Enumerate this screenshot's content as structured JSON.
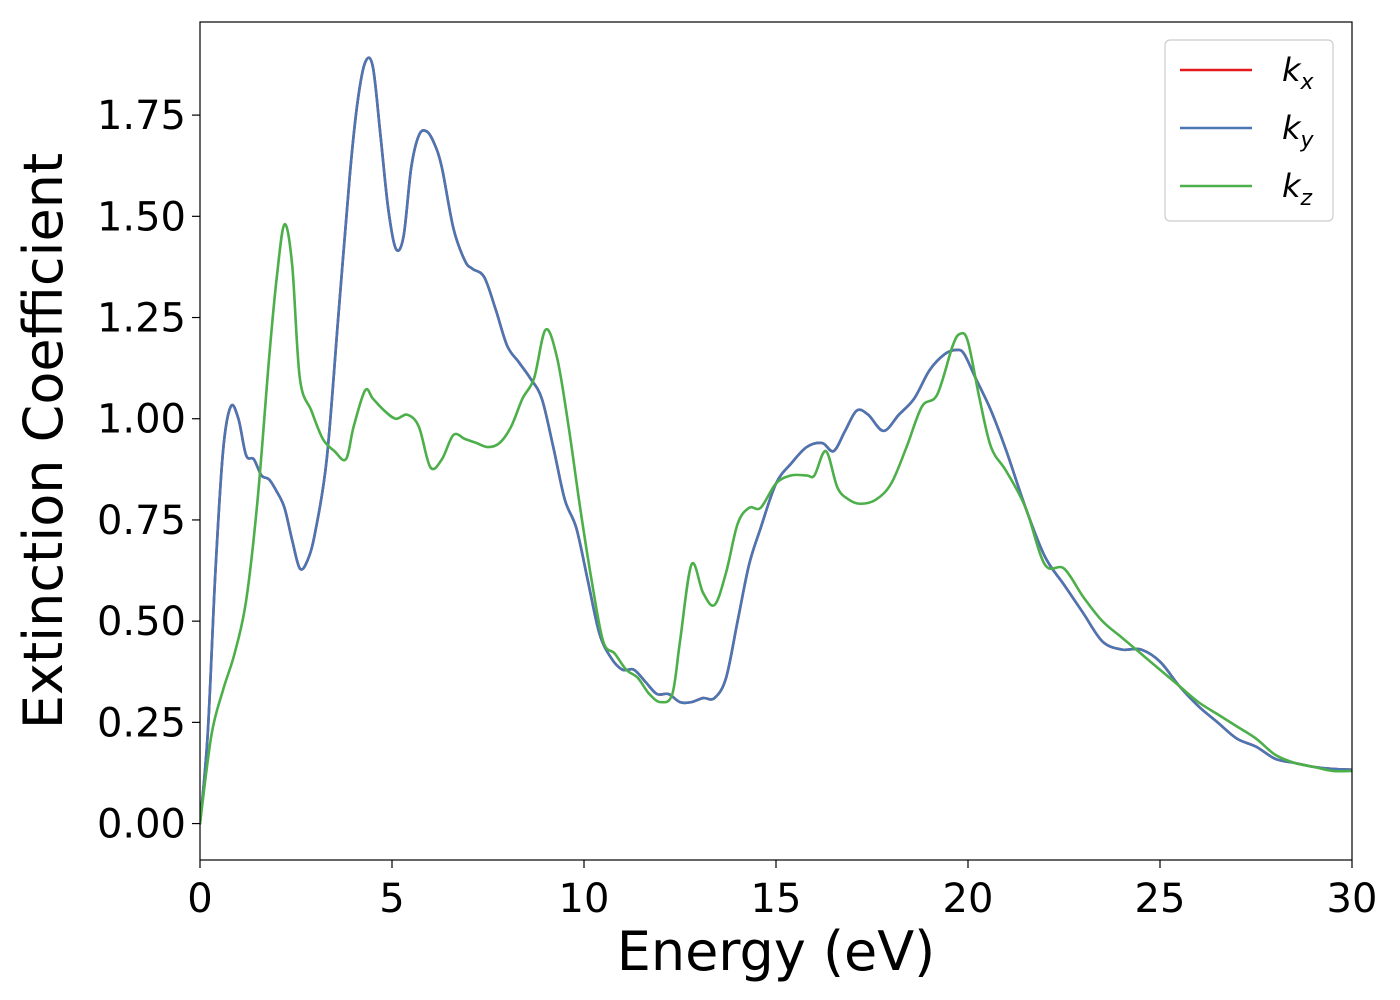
{
  "chart_data": {
    "type": "line",
    "xlabel": "Energy (eV)",
    "ylabel": "Extinction Coefficient",
    "xlim": [
      0,
      30
    ],
    "ylim": [
      -0.09,
      1.98
    ],
    "xticks": [
      0,
      5,
      10,
      15,
      20,
      25,
      30
    ],
    "xtick_labels": [
      "0",
      "5",
      "10",
      "15",
      "20",
      "25",
      "30"
    ],
    "yticks": [
      0.0,
      0.25,
      0.5,
      0.75,
      1.0,
      1.25,
      1.5,
      1.75
    ],
    "ytick_labels": [
      "0.00",
      "0.25",
      "0.50",
      "0.75",
      "1.00",
      "1.25",
      "1.50",
      "1.75"
    ],
    "grid": false,
    "legend_position": "top-right",
    "series": [
      {
        "name": "k_x",
        "base": "k",
        "sub": "x",
        "color": "#e41a1c",
        "x": [
          0,
          0.2,
          0.4,
          0.6,
          0.8,
          1.0,
          1.2,
          1.4,
          1.6,
          1.8,
          2.0,
          2.2,
          2.4,
          2.6,
          2.8,
          3.0,
          3.3,
          3.6,
          3.9,
          4.1,
          4.3,
          4.5,
          4.7,
          4.9,
          5.1,
          5.3,
          5.5,
          5.7,
          5.9,
          6.1,
          6.3,
          6.6,
          6.9,
          7.1,
          7.4,
          7.7,
          8.0,
          8.3,
          8.6,
          8.9,
          9.2,
          9.5,
          9.8,
          10.1,
          10.4,
          10.7,
          11.0,
          11.3,
          11.6,
          11.9,
          12.2,
          12.5,
          12.8,
          13.1,
          13.4,
          13.7,
          14.0,
          14.3,
          14.6,
          15.0,
          15.4,
          15.8,
          16.2,
          16.5,
          16.8,
          17.1,
          17.4,
          17.8,
          18.2,
          18.6,
          19.0,
          19.4,
          19.7,
          19.9,
          20.2,
          20.6,
          21.0,
          21.5,
          22.0,
          22.5,
          23.0,
          23.5,
          24.0,
          24.5,
          25.0,
          25.5,
          26.0,
          26.5,
          27.0,
          27.5,
          28.0,
          28.5,
          29.0,
          29.5,
          30.0
        ],
        "y": [
          0.0,
          0.22,
          0.62,
          0.92,
          1.03,
          1.0,
          0.91,
          0.9,
          0.86,
          0.85,
          0.82,
          0.78,
          0.7,
          0.63,
          0.65,
          0.72,
          0.9,
          1.25,
          1.6,
          1.78,
          1.88,
          1.87,
          1.7,
          1.52,
          1.42,
          1.45,
          1.62,
          1.7,
          1.71,
          1.68,
          1.62,
          1.47,
          1.39,
          1.37,
          1.35,
          1.27,
          1.18,
          1.14,
          1.1,
          1.05,
          0.93,
          0.8,
          0.73,
          0.6,
          0.47,
          0.41,
          0.38,
          0.38,
          0.35,
          0.32,
          0.32,
          0.3,
          0.3,
          0.31,
          0.31,
          0.36,
          0.5,
          0.64,
          0.73,
          0.84,
          0.89,
          0.93,
          0.94,
          0.92,
          0.97,
          1.02,
          1.01,
          0.97,
          1.01,
          1.05,
          1.12,
          1.16,
          1.17,
          1.16,
          1.1,
          1.02,
          0.92,
          0.78,
          0.66,
          0.59,
          0.52,
          0.45,
          0.43,
          0.43,
          0.4,
          0.34,
          0.29,
          0.25,
          0.21,
          0.19,
          0.16,
          0.15,
          0.14,
          0.135,
          0.133
        ]
      },
      {
        "name": "k_y",
        "base": "k",
        "sub": "y",
        "color": "#4a76b4",
        "x": [
          0,
          0.2,
          0.4,
          0.6,
          0.8,
          1.0,
          1.2,
          1.4,
          1.6,
          1.8,
          2.0,
          2.2,
          2.4,
          2.6,
          2.8,
          3.0,
          3.3,
          3.6,
          3.9,
          4.1,
          4.3,
          4.5,
          4.7,
          4.9,
          5.1,
          5.3,
          5.5,
          5.7,
          5.9,
          6.1,
          6.3,
          6.6,
          6.9,
          7.1,
          7.4,
          7.7,
          8.0,
          8.3,
          8.6,
          8.9,
          9.2,
          9.5,
          9.8,
          10.1,
          10.4,
          10.7,
          11.0,
          11.3,
          11.6,
          11.9,
          12.2,
          12.5,
          12.8,
          13.1,
          13.4,
          13.7,
          14.0,
          14.3,
          14.6,
          15.0,
          15.4,
          15.8,
          16.2,
          16.5,
          16.8,
          17.1,
          17.4,
          17.8,
          18.2,
          18.6,
          19.0,
          19.4,
          19.7,
          19.9,
          20.2,
          20.6,
          21.0,
          21.5,
          22.0,
          22.5,
          23.0,
          23.5,
          24.0,
          24.5,
          25.0,
          25.5,
          26.0,
          26.5,
          27.0,
          27.5,
          28.0,
          28.5,
          29.0,
          29.5,
          30.0
        ],
        "y": [
          0.0,
          0.22,
          0.62,
          0.92,
          1.03,
          1.0,
          0.91,
          0.9,
          0.86,
          0.85,
          0.82,
          0.78,
          0.7,
          0.63,
          0.65,
          0.72,
          0.9,
          1.25,
          1.6,
          1.78,
          1.88,
          1.87,
          1.7,
          1.52,
          1.42,
          1.45,
          1.62,
          1.7,
          1.71,
          1.68,
          1.62,
          1.47,
          1.39,
          1.37,
          1.35,
          1.27,
          1.18,
          1.14,
          1.1,
          1.05,
          0.93,
          0.8,
          0.73,
          0.6,
          0.47,
          0.41,
          0.38,
          0.38,
          0.35,
          0.32,
          0.32,
          0.3,
          0.3,
          0.31,
          0.31,
          0.36,
          0.5,
          0.64,
          0.73,
          0.84,
          0.89,
          0.93,
          0.94,
          0.92,
          0.97,
          1.02,
          1.01,
          0.97,
          1.01,
          1.05,
          1.12,
          1.16,
          1.17,
          1.16,
          1.1,
          1.02,
          0.92,
          0.78,
          0.66,
          0.59,
          0.52,
          0.45,
          0.43,
          0.43,
          0.4,
          0.34,
          0.29,
          0.25,
          0.21,
          0.19,
          0.16,
          0.15,
          0.14,
          0.135,
          0.133
        ]
      },
      {
        "name": "k_z",
        "base": "k",
        "sub": "z",
        "color": "#4daf4a",
        "x": [
          0,
          0.3,
          0.6,
          0.9,
          1.2,
          1.5,
          1.8,
          2.0,
          2.2,
          2.4,
          2.6,
          2.9,
          3.2,
          3.5,
          3.8,
          4.0,
          4.3,
          4.5,
          4.8,
          5.1,
          5.4,
          5.7,
          6.0,
          6.3,
          6.6,
          6.9,
          7.2,
          7.5,
          7.8,
          8.1,
          8.4,
          8.7,
          9.0,
          9.3,
          9.6,
          9.9,
          10.2,
          10.5,
          10.8,
          11.1,
          11.4,
          11.7,
          12.0,
          12.3,
          12.5,
          12.8,
          13.1,
          13.4,
          13.7,
          14.0,
          14.3,
          14.6,
          15.0,
          15.4,
          15.8,
          16.0,
          16.3,
          16.6,
          16.9,
          17.2,
          17.6,
          18.0,
          18.4,
          18.8,
          19.2,
          19.6,
          19.8,
          20.0,
          20.3,
          20.6,
          21.0,
          21.5,
          22.0,
          22.5,
          23.0,
          23.5,
          24.0,
          24.5,
          25.0,
          25.5,
          26.0,
          26.5,
          27.0,
          27.5,
          28.0,
          28.5,
          29.0,
          29.5,
          30.0
        ],
        "y": [
          0.0,
          0.22,
          0.33,
          0.42,
          0.55,
          0.8,
          1.15,
          1.35,
          1.48,
          1.38,
          1.1,
          1.02,
          0.95,
          0.92,
          0.9,
          0.98,
          1.07,
          1.05,
          1.02,
          1.0,
          1.01,
          0.98,
          0.88,
          0.9,
          0.96,
          0.95,
          0.94,
          0.93,
          0.94,
          0.98,
          1.05,
          1.1,
          1.22,
          1.15,
          0.98,
          0.78,
          0.6,
          0.45,
          0.42,
          0.38,
          0.36,
          0.32,
          0.3,
          0.32,
          0.45,
          0.64,
          0.57,
          0.54,
          0.62,
          0.74,
          0.78,
          0.78,
          0.84,
          0.86,
          0.86,
          0.86,
          0.92,
          0.83,
          0.8,
          0.79,
          0.8,
          0.84,
          0.93,
          1.03,
          1.06,
          1.18,
          1.21,
          1.19,
          1.05,
          0.93,
          0.87,
          0.78,
          0.64,
          0.63,
          0.56,
          0.5,
          0.46,
          0.42,
          0.38,
          0.34,
          0.3,
          0.27,
          0.24,
          0.21,
          0.17,
          0.15,
          0.14,
          0.13,
          0.13
        ]
      }
    ]
  }
}
